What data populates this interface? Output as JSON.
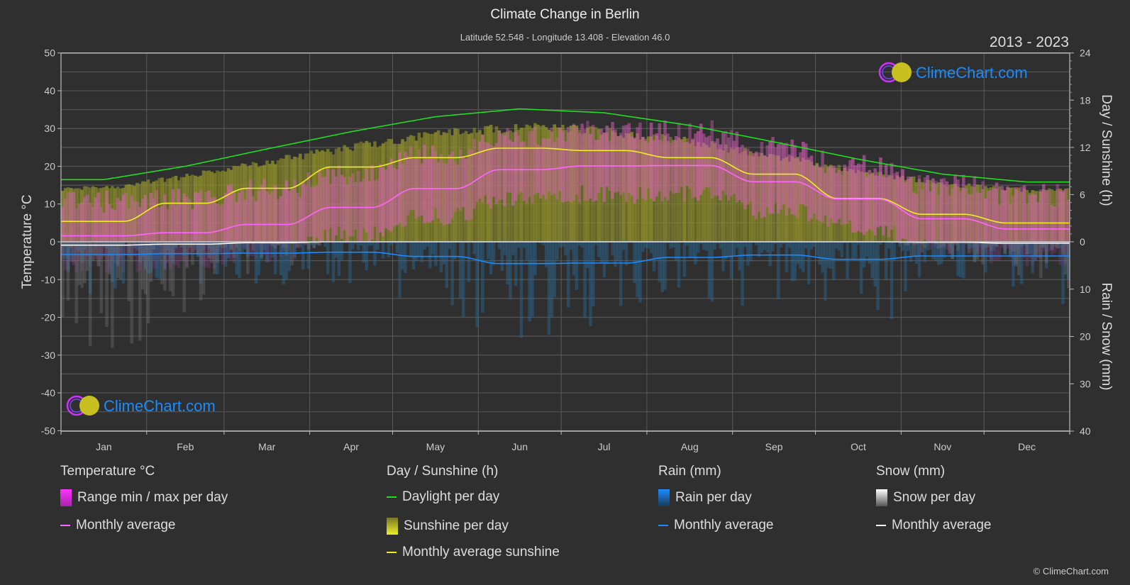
{
  "header": {
    "title": "Climate Change in Berlin",
    "subtitle": "Latitude 52.548 - Longitude 13.408 - Elevation 46.0",
    "years": "2013 - 2023"
  },
  "chart_data": {
    "type": "line",
    "categories": [
      "Jan",
      "Feb",
      "Mar",
      "Apr",
      "May",
      "Jun",
      "Jul",
      "Aug",
      "Sep",
      "Oct",
      "Nov",
      "Dec"
    ],
    "left_axis": {
      "label": "Temperature °C",
      "range": [
        -50,
        50
      ],
      "ticks": [
        "50",
        "40",
        "30",
        "20",
        "10",
        "0",
        "-10",
        "-20",
        "-30",
        "-40",
        "-50"
      ]
    },
    "right_axis_top": {
      "label": "Day / Sunshine (h)",
      "range": [
        0,
        24
      ],
      "ticks": [
        "24",
        "18",
        "12",
        "6",
        "0"
      ]
    },
    "right_axis_bottom": {
      "label": "Rain / Snow (mm)",
      "range": [
        0,
        40
      ],
      "ticks": [
        "10",
        "20",
        "30",
        "40"
      ]
    },
    "grid": true,
    "series": [
      {
        "name": "Monthly average",
        "group": "Temperature °C",
        "unit": "°C",
        "color": "#ff66ff",
        "values": [
          1.6,
          2.4,
          4.6,
          9.1,
          14.1,
          19.1,
          20.1,
          20.2,
          15.9,
          11.3,
          6.1,
          3.4
        ]
      },
      {
        "name": "Daylight per day",
        "group": "Day / Sunshine (h)",
        "unit": "h",
        "color": "#22dd22",
        "values": [
          7.9,
          9.6,
          11.8,
          14.0,
          15.9,
          16.9,
          16.4,
          14.8,
          12.7,
          10.5,
          8.6,
          7.6
        ]
      },
      {
        "name": "Monthly average sunshine",
        "group": "Day / Sunshine (h)",
        "unit": "h",
        "color": "#eeee22",
        "values": [
          2.6,
          4.9,
          6.8,
          9.5,
          10.7,
          11.9,
          11.6,
          10.7,
          8.6,
          5.5,
          3.5,
          2.4
        ]
      },
      {
        "name": "Monthly average",
        "group": "Rain (mm)",
        "unit": "mm",
        "color": "#1a8cff",
        "values": [
          2.7,
          2.5,
          2.4,
          2.2,
          3.1,
          4.6,
          4.5,
          3.3,
          2.8,
          3.7,
          3.0,
          3.0
        ]
      },
      {
        "name": "Monthly average",
        "group": "Snow (mm)",
        "unit": "mm",
        "color": "#ffffff",
        "values": [
          0.7,
          0.5,
          0.2,
          0,
          0,
          0,
          0,
          0,
          0,
          0,
          0.1,
          0.3
        ]
      }
    ]
  },
  "legend": {
    "temperature": {
      "title": "Temperature °C",
      "items": [
        "Range min / max per day",
        "Monthly average"
      ]
    },
    "sunshine": {
      "title": "Day / Sunshine (h)",
      "items": [
        "Daylight per day",
        "Sunshine per day",
        "Monthly average sunshine"
      ]
    },
    "rain": {
      "title": "Rain (mm)",
      "items": [
        "Rain per day",
        "Monthly average"
      ]
    },
    "snow": {
      "title": "Snow (mm)",
      "items": [
        "Snow per day",
        "Monthly average"
      ]
    }
  },
  "logo": {
    "text": "ClimeChart.com"
  },
  "copyright": "© ClimeChart.com"
}
